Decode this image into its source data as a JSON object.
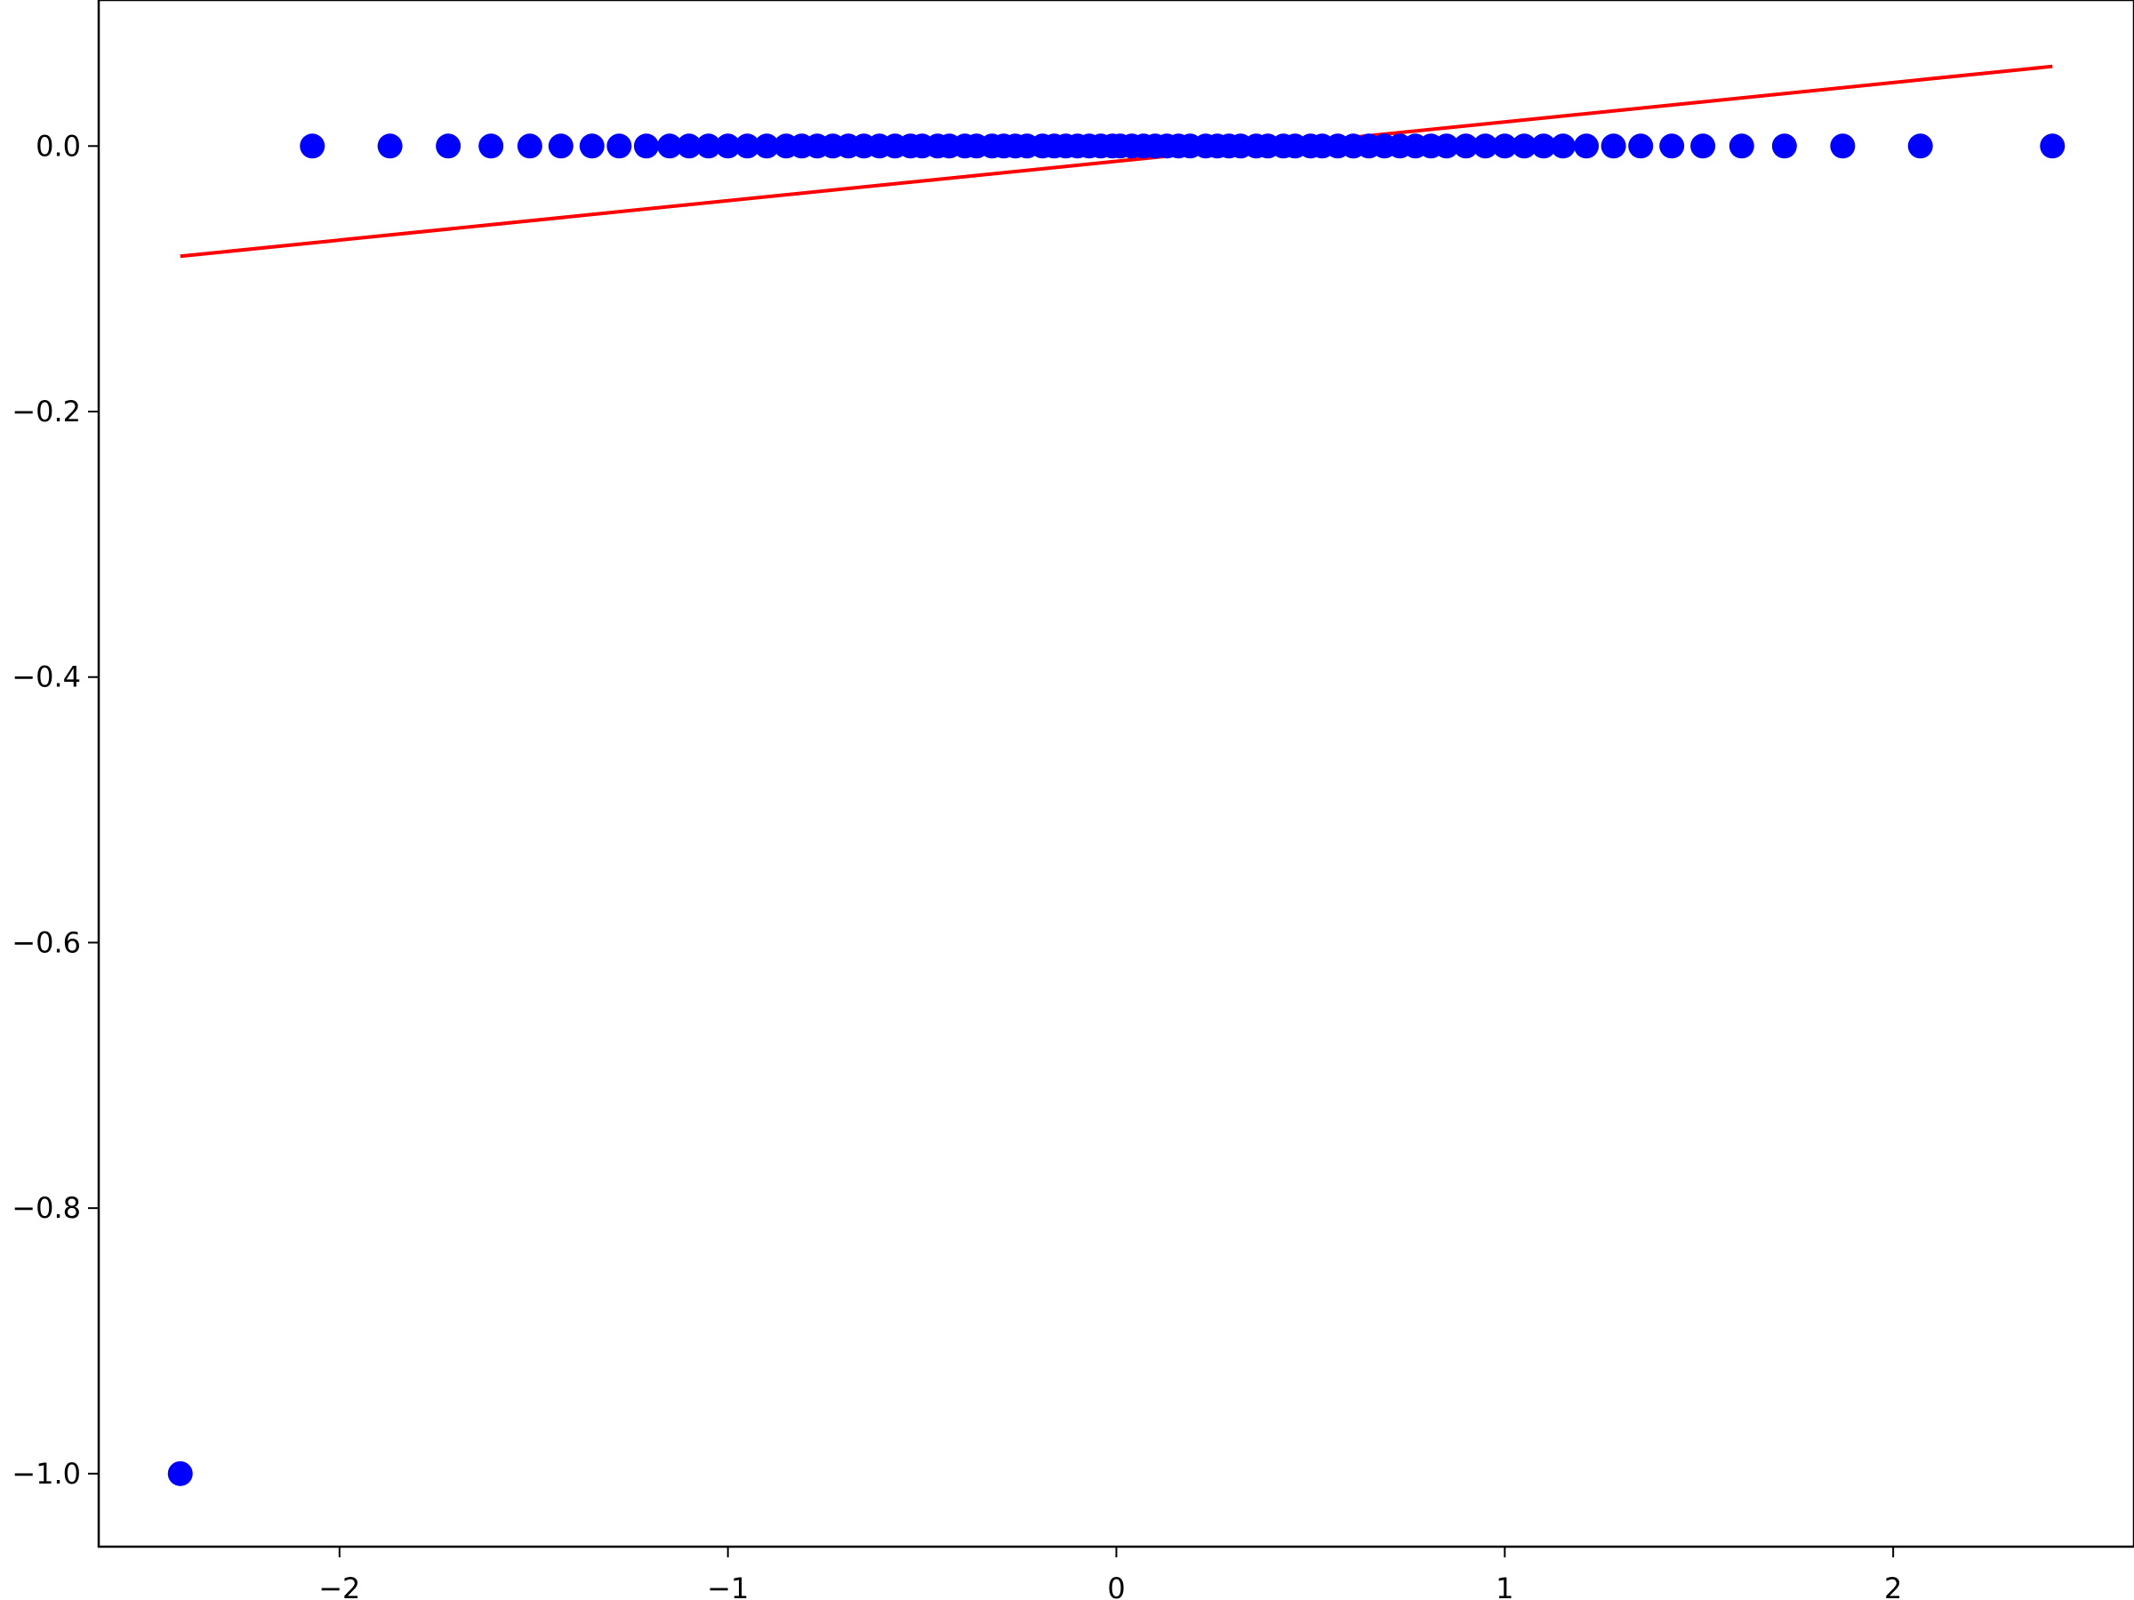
{
  "chart_data": {
    "type": "scatter",
    "title": "",
    "xlabel": "",
    "ylabel": "",
    "xlim": [
      -2.62,
      2.62
    ],
    "ylim": [
      -1.055,
      0.11
    ],
    "x_ticks": [
      -2,
      -1,
      0,
      1,
      2
    ],
    "x_tick_labels": [
      "−2",
      "−1",
      "0",
      "1",
      "2"
    ],
    "y_ticks": [
      0.0,
      -0.2,
      -0.4,
      -0.6,
      -0.8,
      -1.0
    ],
    "y_tick_labels": [
      "0.0",
      "−0.2",
      "−0.4",
      "−0.6",
      "−0.8",
      "−1.0"
    ],
    "grid": false,
    "series": [
      {
        "kind": "scatter",
        "color": "#0000ff",
        "points": [
          [
            -2.41,
            -1.0
          ],
          [
            -2.07,
            0.0
          ],
          [
            -1.87,
            0.0
          ],
          [
            -1.72,
            0.0
          ],
          [
            -1.61,
            0.0
          ],
          [
            -1.51,
            0.0
          ],
          [
            -1.43,
            0.0
          ],
          [
            -1.35,
            0.0
          ],
          [
            -1.28,
            0.0
          ],
          [
            -1.21,
            0.0
          ],
          [
            -1.15,
            0.0
          ],
          [
            -1.1,
            0.0
          ],
          [
            -1.05,
            0.0
          ],
          [
            -1.0,
            0.0
          ],
          [
            -0.95,
            0.0
          ],
          [
            -0.9,
            0.0
          ],
          [
            -0.85,
            0.0
          ],
          [
            -0.81,
            0.0
          ],
          [
            -0.77,
            0.0
          ],
          [
            -0.73,
            0.0
          ],
          [
            -0.69,
            0.0
          ],
          [
            -0.65,
            0.0
          ],
          [
            -0.61,
            0.0
          ],
          [
            -0.57,
            0.0
          ],
          [
            -0.53,
            0.0
          ],
          [
            -0.5,
            0.0
          ],
          [
            -0.46,
            0.0
          ],
          [
            -0.43,
            0.0
          ],
          [
            -0.39,
            0.0
          ],
          [
            -0.36,
            0.0
          ],
          [
            -0.32,
            0.0
          ],
          [
            -0.29,
            0.0
          ],
          [
            -0.26,
            0.0
          ],
          [
            -0.23,
            0.0
          ],
          [
            -0.19,
            0.0
          ],
          [
            -0.16,
            0.0
          ],
          [
            -0.13,
            0.0
          ],
          [
            -0.1,
            0.0
          ],
          [
            -0.07,
            0.0
          ],
          [
            -0.04,
            0.0
          ],
          [
            -0.01,
            0.0
          ],
          [
            0.01,
            0.0
          ],
          [
            0.04,
            0.0
          ],
          [
            0.07,
            0.0
          ],
          [
            0.1,
            0.0
          ],
          [
            0.13,
            0.0
          ],
          [
            0.16,
            0.0
          ],
          [
            0.19,
            0.0
          ],
          [
            0.23,
            0.0
          ],
          [
            0.26,
            0.0
          ],
          [
            0.29,
            0.0
          ],
          [
            0.32,
            0.0
          ],
          [
            0.36,
            0.0
          ],
          [
            0.39,
            0.0
          ],
          [
            0.43,
            0.0
          ],
          [
            0.46,
            0.0
          ],
          [
            0.5,
            0.0
          ],
          [
            0.53,
            0.0
          ],
          [
            0.57,
            0.0
          ],
          [
            0.61,
            0.0
          ],
          [
            0.65,
            0.0
          ],
          [
            0.69,
            0.0
          ],
          [
            0.73,
            0.0
          ],
          [
            0.77,
            0.0
          ],
          [
            0.81,
            0.0
          ],
          [
            0.85,
            0.0
          ],
          [
            0.9,
            0.0
          ],
          [
            0.95,
            0.0
          ],
          [
            1.0,
            0.0
          ],
          [
            1.05,
            0.0
          ],
          [
            1.1,
            0.0
          ],
          [
            1.15,
            0.0
          ],
          [
            1.21,
            0.0
          ],
          [
            1.28,
            0.0
          ],
          [
            1.35,
            0.0
          ],
          [
            1.43,
            0.0
          ],
          [
            1.51,
            0.0
          ],
          [
            1.61,
            0.0
          ],
          [
            1.72,
            0.0
          ],
          [
            1.87,
            0.0
          ],
          [
            2.07,
            0.0
          ],
          [
            2.41,
            0.0
          ]
        ]
      },
      {
        "kind": "line",
        "color": "#ff0000",
        "points": [
          [
            -2.41,
            -0.083
          ],
          [
            2.41,
            0.06
          ]
        ]
      }
    ]
  }
}
